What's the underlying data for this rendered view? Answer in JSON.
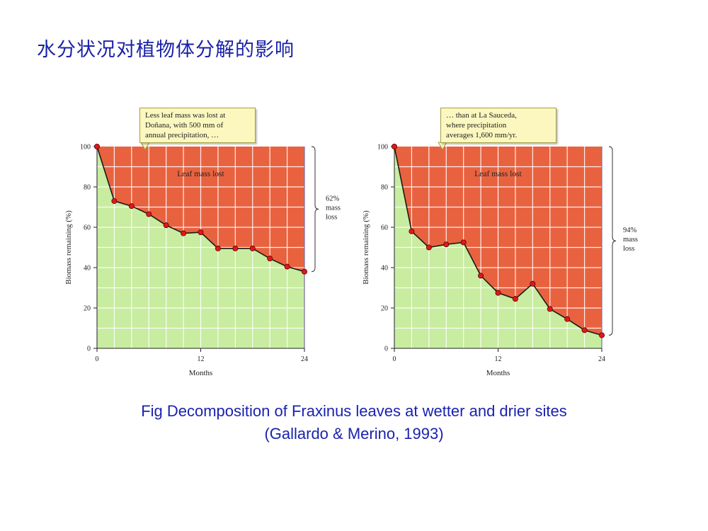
{
  "slide": {
    "title": "水分状况对植物体分解的影响",
    "caption_line1": "Fig Decomposition of Fraxinus leaves at wetter and drier sites",
    "caption_line2": "(Gallardo & Merino, 1993)"
  },
  "colors": {
    "title": "#1a22a8",
    "lost_area": "#e9623f",
    "remaining_area": "#c8eca0",
    "line": "#1a1a1a",
    "marker": "#e01818",
    "callout_bg": "#fbf7bf"
  },
  "chart_data": [
    {
      "type": "area",
      "callout": "Less leaf mass was lost at\nDoñana, with 500 mm of\nannual precipitation, …",
      "region_label": "Leaf mass lost",
      "xlabel": "Months",
      "ylabel": "Biomass remaining (%)",
      "xlim": [
        0,
        24
      ],
      "ylim": [
        0,
        100
      ],
      "x_ticks": [
        "0",
        "12",
        "24"
      ],
      "y_ticks": [
        "0",
        "20",
        "40",
        "60",
        "80",
        "100"
      ],
      "grid": true,
      "bracket_label": [
        "62%",
        "mass",
        "loss"
      ],
      "x": [
        0,
        2,
        4,
        6,
        8,
        10,
        12,
        14,
        16,
        18,
        20,
        22,
        24
      ],
      "y": [
        100,
        73,
        70.5,
        66.5,
        61,
        57,
        57.5,
        49.5,
        49.5,
        49.5,
        44.5,
        40.5,
        38
      ]
    },
    {
      "type": "area",
      "callout": "… than at La Sauceda,\nwhere precipitation\naverages 1,600 mm/yr.",
      "region_label": "Leaf mass lost",
      "xlabel": "Months",
      "ylabel": "Biomass remaining (%)",
      "xlim": [
        0,
        24
      ],
      "ylim": [
        0,
        100
      ],
      "x_ticks": [
        "0",
        "12",
        "24"
      ],
      "y_ticks": [
        "0",
        "20",
        "40",
        "60",
        "80",
        "100"
      ],
      "grid": true,
      "bracket_label": [
        "94%",
        "mass",
        "loss"
      ],
      "x": [
        0,
        2,
        4,
        6,
        8,
        10,
        12,
        14,
        16,
        18,
        20,
        22,
        24
      ],
      "y": [
        100,
        58,
        50,
        51.5,
        52.5,
        36,
        27.5,
        24.5,
        32,
        19.5,
        14.5,
        9,
        6.5
      ]
    }
  ]
}
